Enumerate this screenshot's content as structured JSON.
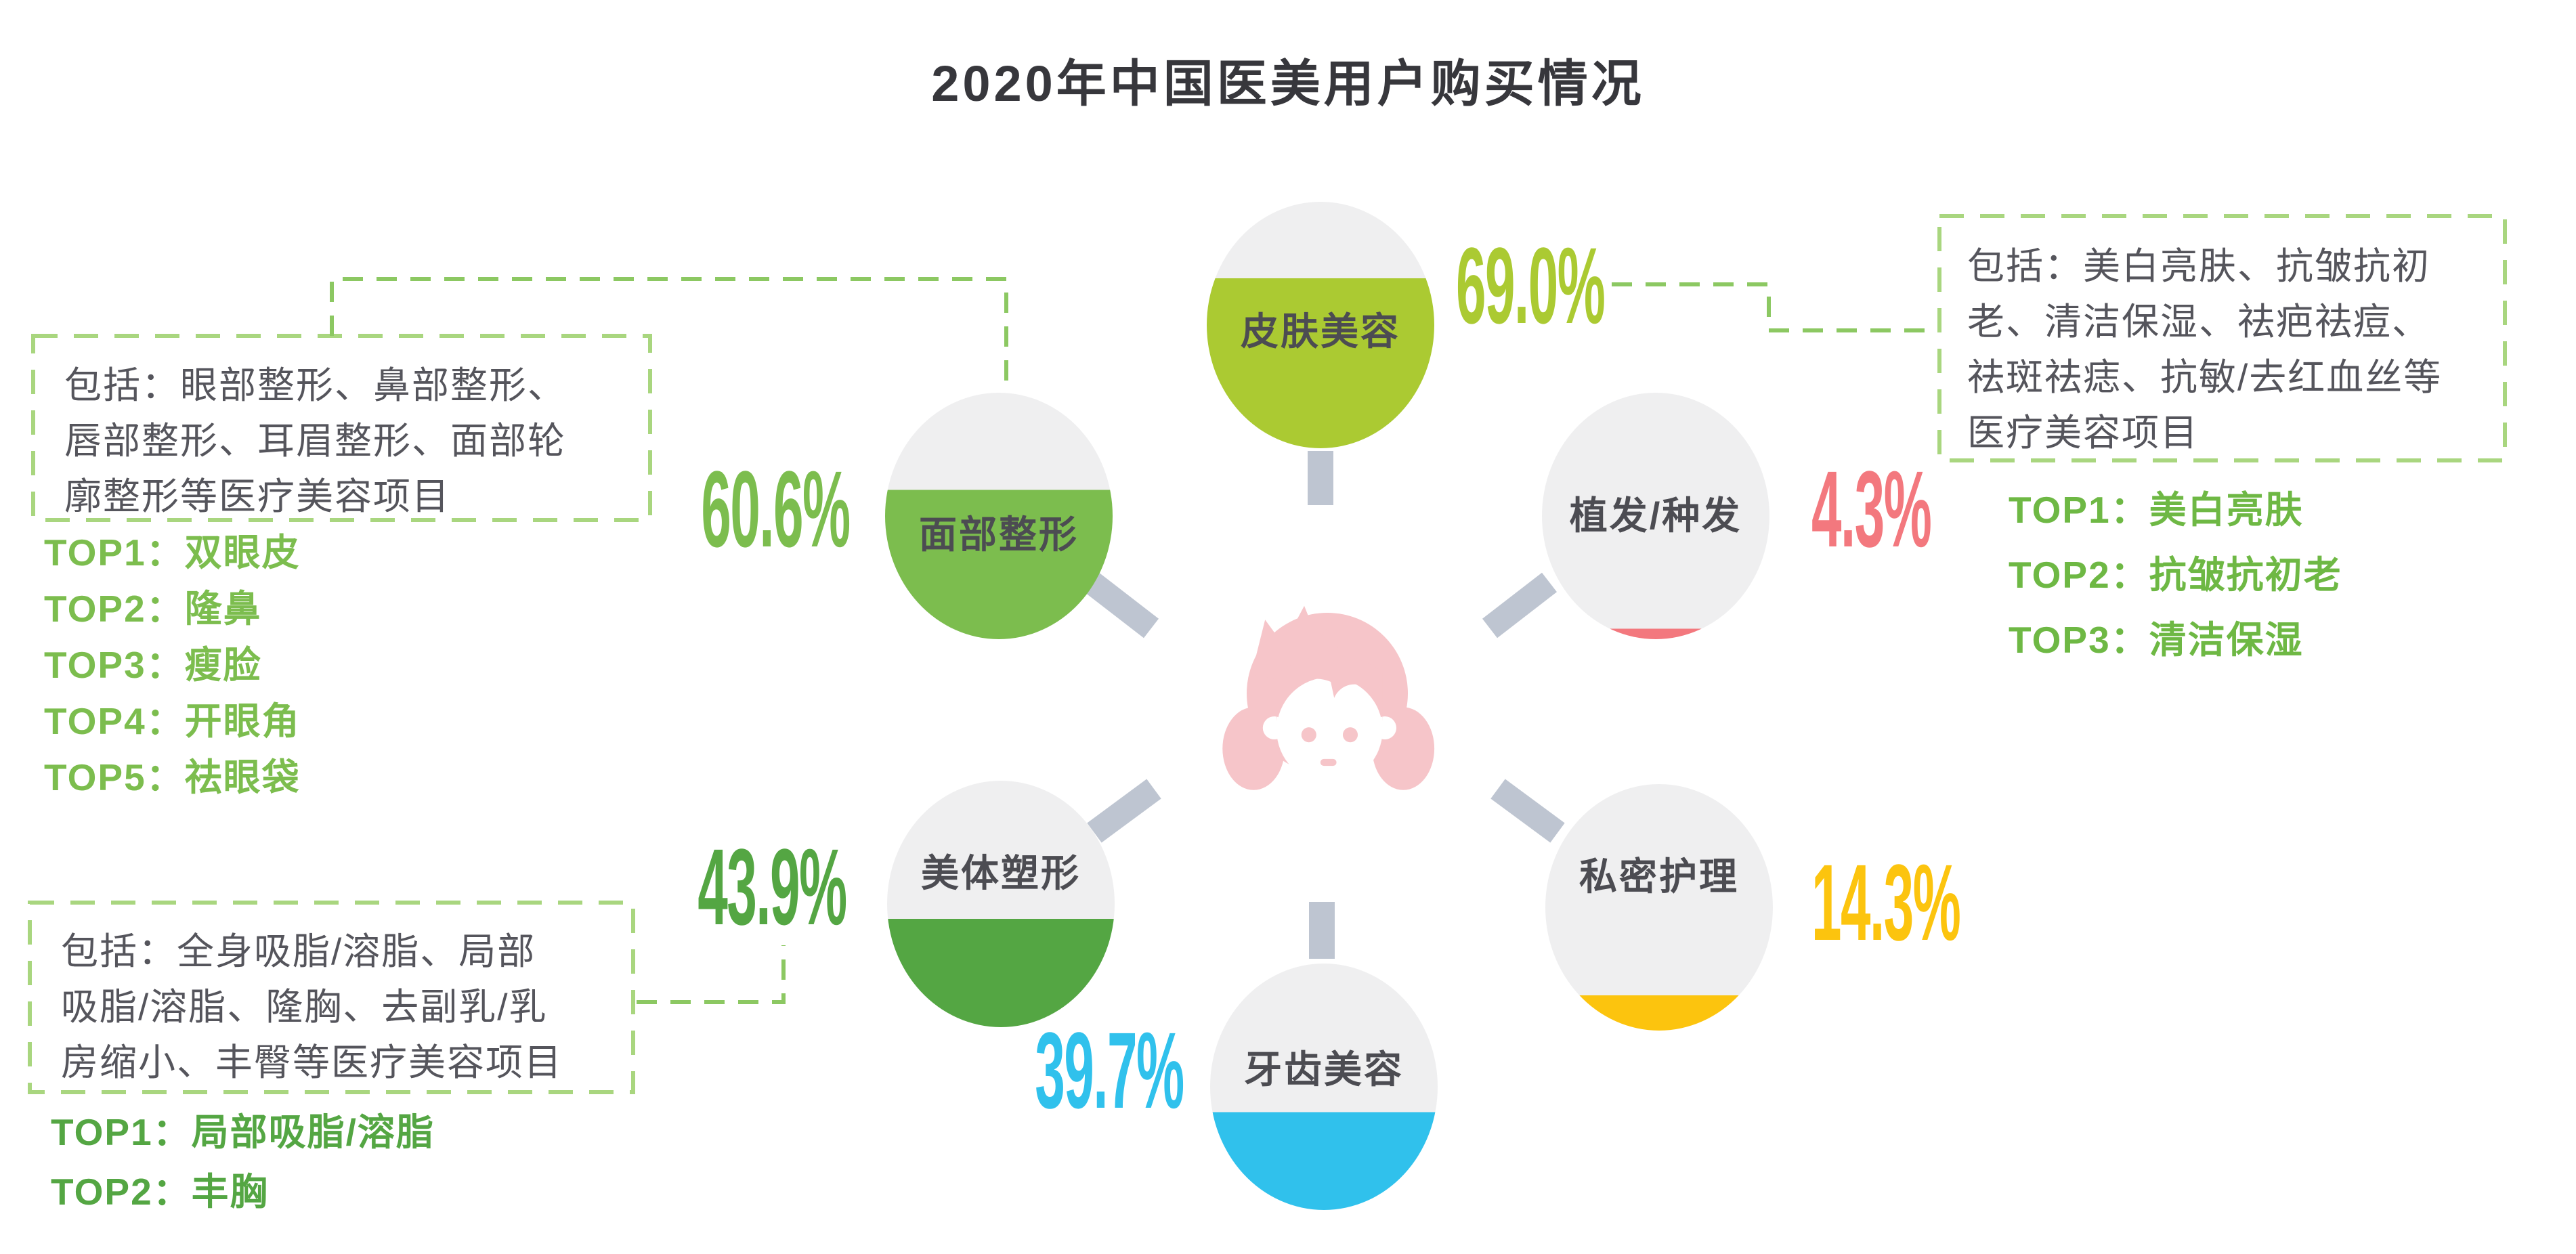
{
  "title": "2020年中国医美用户购买情况",
  "chart_data": {
    "type": "bubble",
    "title": "2020年中国医美用户购买情况",
    "unit": "%",
    "legend_position": "none",
    "categories": [
      "皮肤美容",
      "面部整形",
      "植发/种发",
      "美体塑形",
      "私密护理",
      "牙齿美容"
    ],
    "values": [
      69.0,
      60.6,
      4.3,
      43.9,
      14.3,
      39.7
    ],
    "bubbles": [
      {
        "label": "皮肤美容",
        "value": 69.0,
        "display": "69.0%",
        "color": "#abca32"
      },
      {
        "label": "面部整形",
        "value": 60.6,
        "display": "60.6%",
        "color": "#7cbd4e"
      },
      {
        "label": "植发/种发",
        "value": 4.3,
        "display": "4.3%",
        "color": "#f3787e"
      },
      {
        "label": "美体塑形",
        "value": 43.9,
        "display": "43.9%",
        "color": "#54a643"
      },
      {
        "label": "私密护理",
        "value": 14.3,
        "display": "14.3%",
        "color": "#fcc40e"
      },
      {
        "label": "牙齿美容",
        "value": 39.7,
        "display": "39.7%",
        "color": "#30c1ec"
      }
    ]
  },
  "notes": {
    "face": {
      "lines": [
        "包括：眼部整形、鼻部整形、",
        "唇部整形、耳眉整形、面部轮",
        "廓整形等医疗美容项目"
      ],
      "tops": [
        "TOP1：双眼皮",
        "TOP2：隆鼻",
        "TOP3：瘦脸",
        "TOP4：开眼角",
        "TOP5：祛眼袋"
      ],
      "top_color": "#7cbd4e"
    },
    "body": {
      "lines": [
        "包括：全身吸脂/溶脂、局部",
        "吸脂/溶脂、隆胸、去副乳/乳",
        "房缩小、丰臀等医疗美容项目"
      ],
      "tops": [
        "TOP1：局部吸脂/溶脂",
        "TOP2：丰胸"
      ],
      "top_color": "#54a643"
    },
    "skin": {
      "lines": [
        "包括：美白亮肤、抗皱抗初",
        "老、清洁保湿、祛疤祛痘、",
        "祛斑祛痣、抗敏/去红血丝等",
        "医疗美容项目"
      ],
      "tops": [
        "TOP1：美白亮肤",
        "TOP2：抗皱抗初老",
        "TOP3：清洁保湿"
      ],
      "top_color": "#6eb844"
    }
  },
  "colors": {
    "bubble_gray": "#efeff0",
    "spoke": "#bec5d1",
    "dashed_line": "#8cc862",
    "box_border": "#a9d67f",
    "title_text": "#37373c",
    "label_text": "#4c4c52",
    "note_text": "#55555c",
    "avatar_pink": "#f6c5c9"
  }
}
